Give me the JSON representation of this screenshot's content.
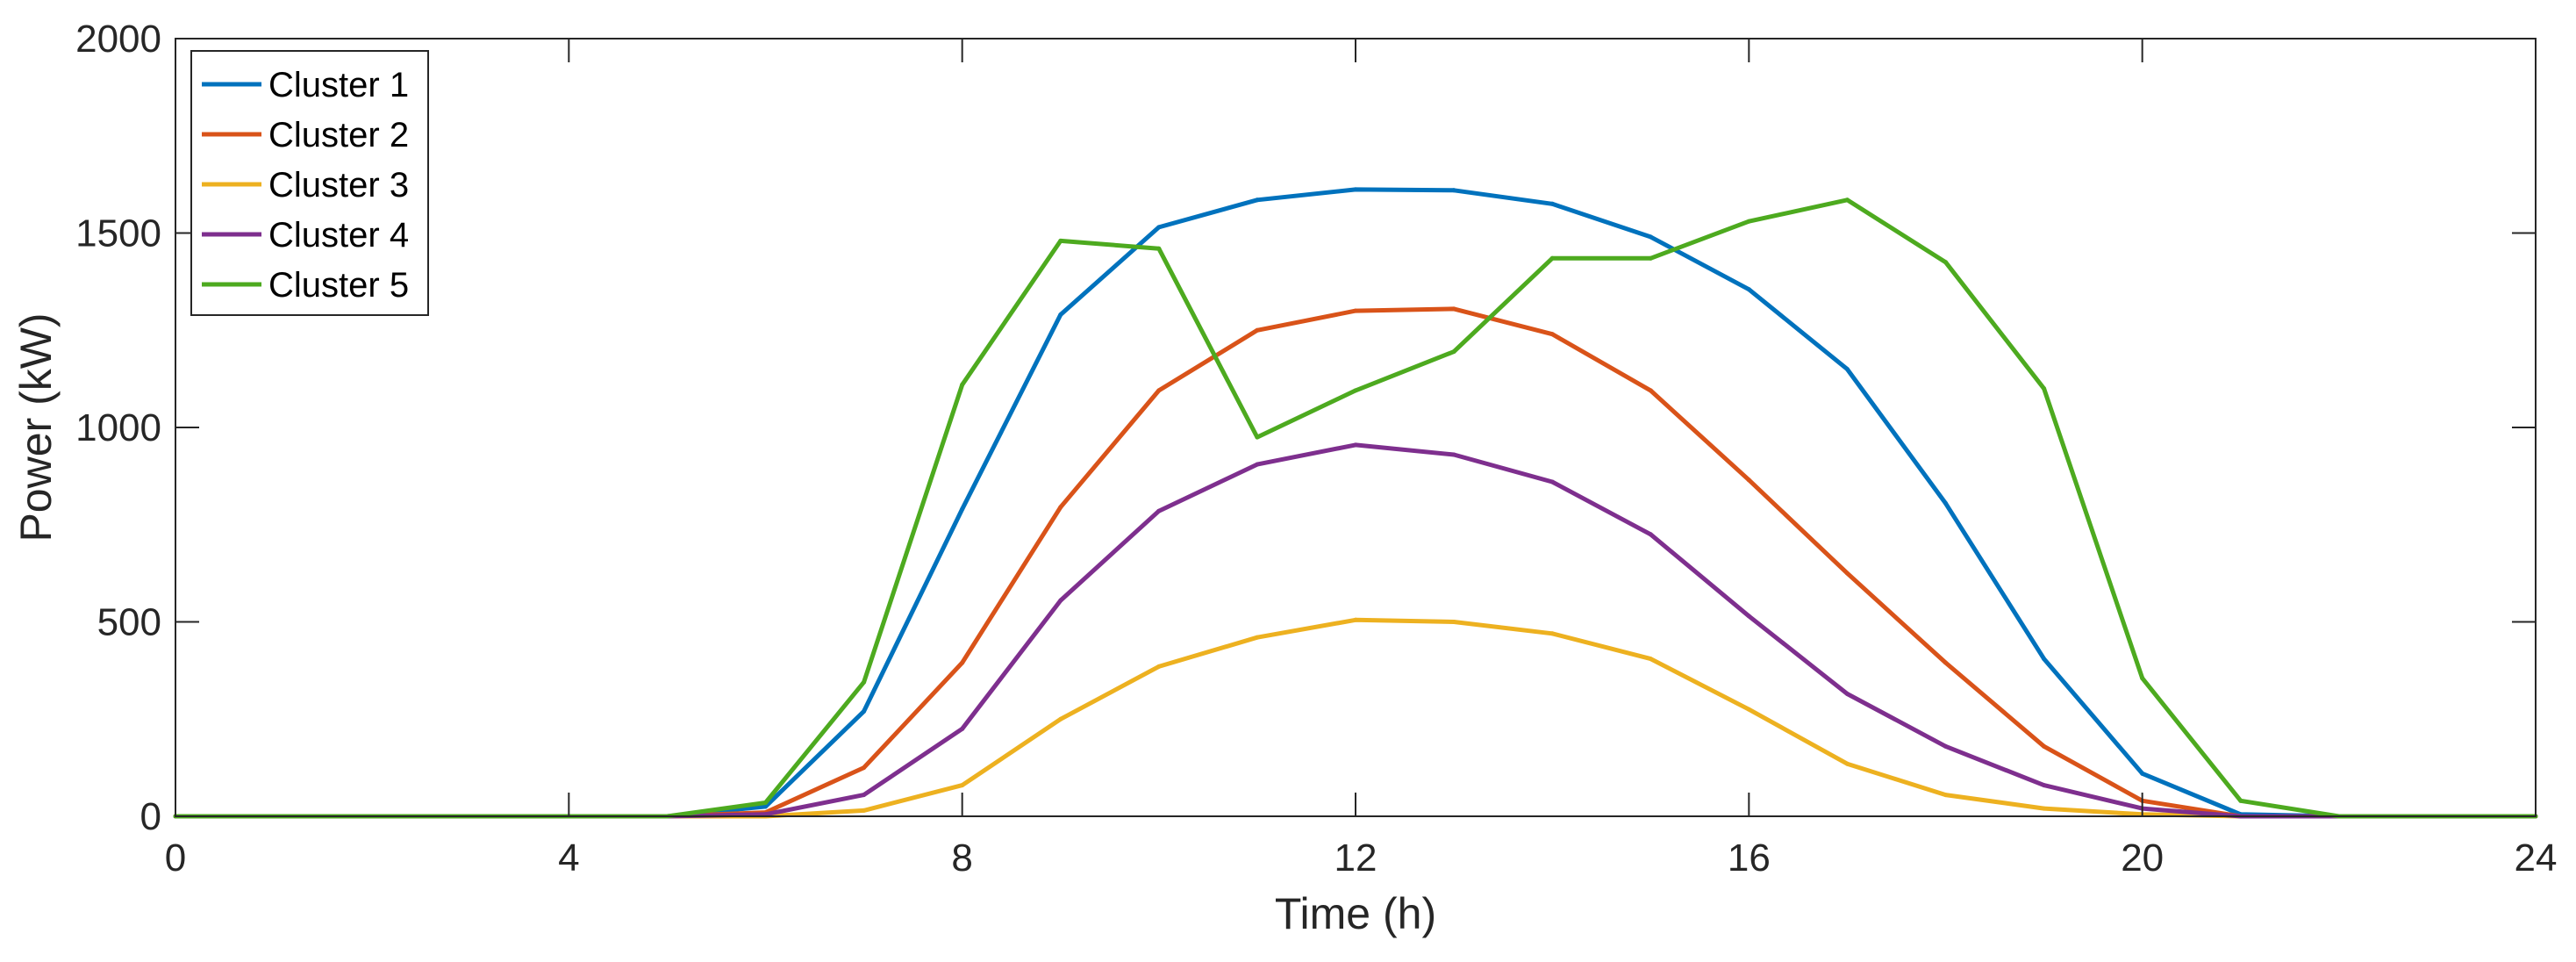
{
  "chart_data": {
    "type": "line",
    "title": "",
    "xlabel": "Time (h)",
    "ylabel": "Power (kW)",
    "xlim": [
      0,
      24
    ],
    "ylim": [
      0,
      2000
    ],
    "xticks": [
      0,
      4,
      8,
      12,
      16,
      20,
      24
    ],
    "yticks": [
      0,
      500,
      1000,
      1500,
      2000
    ],
    "grid": false,
    "legend_position": "top-left",
    "x": [
      0,
      1,
      2,
      3,
      4,
      5,
      6,
      7,
      8,
      9,
      10,
      11,
      12,
      13,
      14,
      15,
      16,
      17,
      18,
      19,
      20,
      21,
      22,
      23,
      24
    ],
    "series": [
      {
        "name": "Cluster 1",
        "color": "#0072BD",
        "values": [
          0,
          0,
          0,
          0,
          0,
          0,
          25,
          270,
          790,
          1290,
          1515,
          1585,
          1612,
          1610,
          1575,
          1490,
          1355,
          1150,
          805,
          405,
          110,
          5,
          0,
          0,
          0
        ]
      },
      {
        "name": "Cluster 2",
        "color": "#D95319",
        "values": [
          0,
          0,
          0,
          0,
          0,
          0,
          10,
          125,
          395,
          795,
          1095,
          1250,
          1300,
          1305,
          1240,
          1095,
          865,
          625,
          395,
          180,
          40,
          0,
          0,
          0,
          0
        ]
      },
      {
        "name": "Cluster 3",
        "color": "#EDB120",
        "values": [
          0,
          0,
          0,
          0,
          0,
          0,
          0,
          15,
          80,
          250,
          385,
          460,
          505,
          500,
          470,
          405,
          275,
          135,
          55,
          20,
          5,
          0,
          0,
          0,
          0
        ]
      },
      {
        "name": "Cluster 4",
        "color": "#7E2F8E",
        "values": [
          0,
          0,
          0,
          0,
          0,
          0,
          5,
          55,
          225,
          555,
          785,
          905,
          955,
          930,
          860,
          725,
          515,
          315,
          180,
          80,
          20,
          0,
          0,
          0,
          0
        ]
      },
      {
        "name": "Cluster 5",
        "color": "#4DAA1F",
        "values": [
          0,
          0,
          0,
          0,
          0,
          0,
          35,
          345,
          1110,
          1480,
          1460,
          975,
          1095,
          1195,
          1435,
          1435,
          1530,
          1585,
          1425,
          1100,
          355,
          40,
          0,
          0,
          0
        ]
      }
    ]
  }
}
